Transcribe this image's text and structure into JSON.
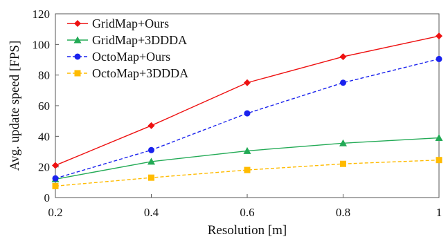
{
  "chart_data": {
    "type": "line",
    "title": "",
    "xlabel": "Resolution [m]",
    "ylabel": "Avg. update speed [FPS]",
    "x": [
      0.2,
      0.4,
      0.6,
      0.8,
      1
    ],
    "xlim": [
      0.2,
      1
    ],
    "ylim": [
      0,
      120
    ],
    "x_ticks": [
      "0.2",
      "0.4",
      "0.6",
      "0.8",
      "1"
    ],
    "y_ticks": [
      "0",
      "20",
      "40",
      "60",
      "80",
      "100",
      "120"
    ],
    "grid": false,
    "legend_position": "top-left",
    "series": [
      {
        "name": "GridMap+Ours",
        "values": [
          21,
          47,
          75,
          92,
          105.5
        ],
        "color": "#ee1111",
        "marker": "diamond",
        "line_style": "solid"
      },
      {
        "name": "GridMap+3DDDA",
        "values": [
          12,
          23.5,
          30.5,
          35.5,
          39
        ],
        "color": "#22aa55",
        "marker": "triangle",
        "line_style": "solid"
      },
      {
        "name": "OctoMap+Ours",
        "values": [
          12.5,
          31,
          55,
          75,
          90.5
        ],
        "color": "#1a22ee",
        "marker": "circle",
        "line_style": "dashed"
      },
      {
        "name": "OctoMap+3DDDA",
        "values": [
          7.5,
          13,
          18,
          22,
          24.5
        ],
        "color": "#ffbb00",
        "marker": "square",
        "line_style": "dashed"
      }
    ]
  }
}
